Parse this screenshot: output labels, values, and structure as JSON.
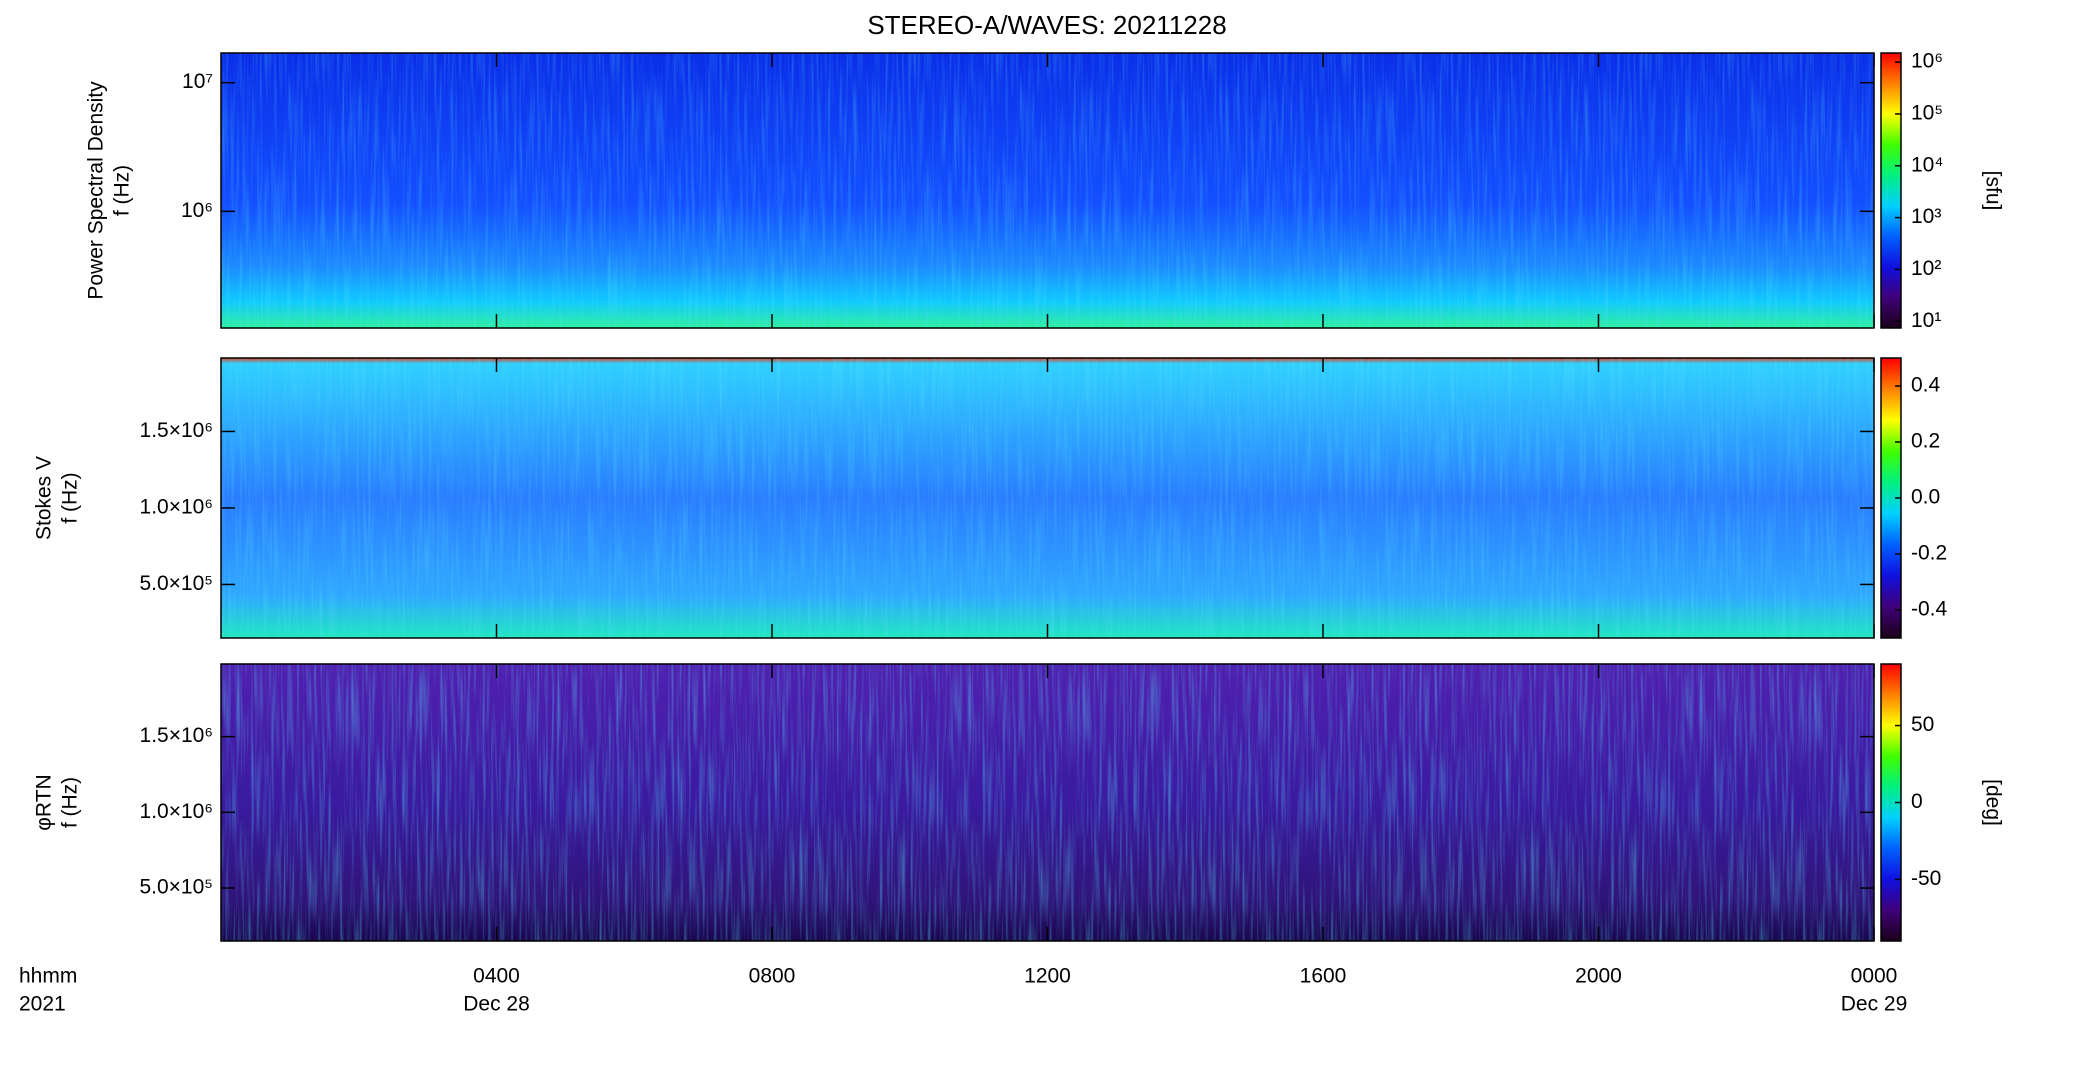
{
  "chart_data": [
    {
      "type": "spectrogram",
      "title": "STEREO-A/WAVES: 20211228",
      "ylabel": [
        "Power Spectral Density",
        "f (Hz)"
      ],
      "ylog": true,
      "ylim": [
        124000,
        17000000
      ],
      "yticks": [
        {
          "value": 1000000,
          "label": "10⁶"
        },
        {
          "value": 10000000,
          "label": "10⁷"
        }
      ],
      "colorbar": {
        "log": true,
        "lim": [
          7.4,
          1500000
        ],
        "label": "[sfu]",
        "ticks": [
          {
            "value": 10,
            "label": "10¹"
          },
          {
            "value": 100,
            "label": "10²"
          },
          {
            "value": 1000,
            "label": "10³"
          },
          {
            "value": 10000,
            "label": "10⁴"
          },
          {
            "value": 100000,
            "label": "10⁵"
          },
          {
            "value": 1000000,
            "label": "10⁶"
          }
        ],
        "colormap": [
          "#1a0018",
          "#40007a",
          "#1010e0",
          "#0060ff",
          "#00d0ff",
          "#00f080",
          "#40ff00",
          "#ffff00",
          "#ff8000",
          "#ff0000"
        ]
      }
    },
    {
      "type": "spectrogram",
      "ylabel": [
        "Stokes V",
        "f (Hz)"
      ],
      "ylog": false,
      "ylim": [
        150000,
        1980000
      ],
      "yticks": [
        {
          "value": 500000,
          "label": "5.0×10⁵"
        },
        {
          "value": 1000000,
          "label": "1.0×10⁶"
        },
        {
          "value": 1500000,
          "label": "1.5×10⁶"
        }
      ],
      "colorbar": {
        "log": false,
        "lim": [
          -0.5,
          0.5
        ],
        "ticks": [
          -0.4,
          -0.2,
          {
            "value": 0,
            "label": "0.0"
          },
          0.2,
          0.4
        ],
        "colormap": [
          "#1a0018",
          "#40007a",
          "#1010e0",
          "#0060ff",
          "#00d0ff",
          "#00f080",
          "#40ff00",
          "#ffff00",
          "#ff8000",
          "#ff0000"
        ]
      }
    },
    {
      "type": "spectrogram",
      "ylabel": [
        "φRTN",
        "f (Hz)"
      ],
      "ylog": false,
      "ylim": [
        150000,
        1980000
      ],
      "yticks": [
        {
          "value": 500000,
          "label": "5.0×10⁵"
        },
        {
          "value": 1000000,
          "label": "1.0×10⁶"
        },
        {
          "value": 1500000,
          "label": "1.5×10⁶"
        }
      ],
      "colorbar": {
        "log": false,
        "lim": [
          -90,
          90
        ],
        "label": "[deg]",
        "ticks": [
          -50,
          0,
          50
        ],
        "colormap": [
          "#1a0018",
          "#40007a",
          "#1010e0",
          "#0060ff",
          "#00d0ff",
          "#00f080",
          "#40ff00",
          "#ffff00",
          "#ff8000",
          "#ff0000"
        ]
      },
      "xlabel": "hhmm",
      "year": "2021",
      "xlim": [
        0,
        24
      ],
      "xticks": [
        {
          "value": 4,
          "label": "0400"
        },
        {
          "value": 8,
          "label": "0800"
        },
        {
          "value": 12,
          "label": "1200"
        },
        {
          "value": 16,
          "label": "1600"
        },
        {
          "value": 20,
          "label": "2000"
        },
        {
          "value": 24,
          "label": "0000"
        }
      ],
      "dates": [
        {
          "value": 4,
          "label": "Dec 28"
        },
        {
          "value": 24,
          "label": "Dec 29"
        }
      ]
    }
  ]
}
